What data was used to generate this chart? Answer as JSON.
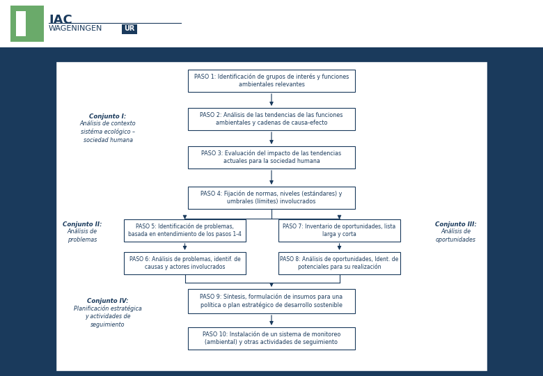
{
  "bg_color": "#1a3a5c",
  "panel_color": "#ffffff",
  "box_color": "#ffffff",
  "box_edge_color": "#1a3a5c",
  "text_color": "#1a3a5c",
  "arrow_color": "#1a3a5c",
  "header_bg": "#ffffff",
  "logo_green": "#6aaa6a",
  "logo_blue": "#1a3a5c",
  "title_bar_color": "#1a3a5c",
  "paso1": "PASO 1: Identificación de grupos de interés y funciones\nambientales relevantes",
  "paso2": "PASO 2: Análisis de las tendencias de las funciones\nambientales y cadenas de causa-efecto",
  "paso3": "PASO 3: Evaluación del impacto de las tendencias\nactuales para la sociedad humana",
  "paso4": "PASO 4: Fijación de normas, niveles (estándares) y\numbrales (límites) involucrados",
  "paso5": "PASO 5: Identificación de problemas,\nbasada en entendimiento de los pasos 1-4",
  "paso6": "PASO 6: Análisis de problemas, identif. de\ncausas y actores involucrados",
  "paso7": "PASO 7: Inventario de oportunidades, lista\nlarga y corta",
  "paso8": "PASO 8: Análisis de oportunidades, Ident. de\npotenciales para su realización",
  "paso9": "PASO 9: Síntesis, formulación de insumos para una\npolítica o plan estratégico de desarrollo sostenible",
  "paso10": "PASO 10: Instalación de un sistema de monitoreo\n(ambiental) y otras actividades de seguimiento",
  "conjunto1_title": "Conjunto I:",
  "conjunto1_sub": "Análisis de contexto\nsistéma ecológico –\nsociedad humana",
  "conjunto2_title": "Conjunto II:",
  "conjunto2_sub": "Análisis de\nproblemas",
  "conjunto3_title": "Conjunto III:",
  "conjunto3_sub": "Análisis de\noportunidades",
  "conjunto4_title": "Conjunto IV:",
  "conjunto4_sub": "Planificación estratégica\ny actividades de\nseguimiento"
}
